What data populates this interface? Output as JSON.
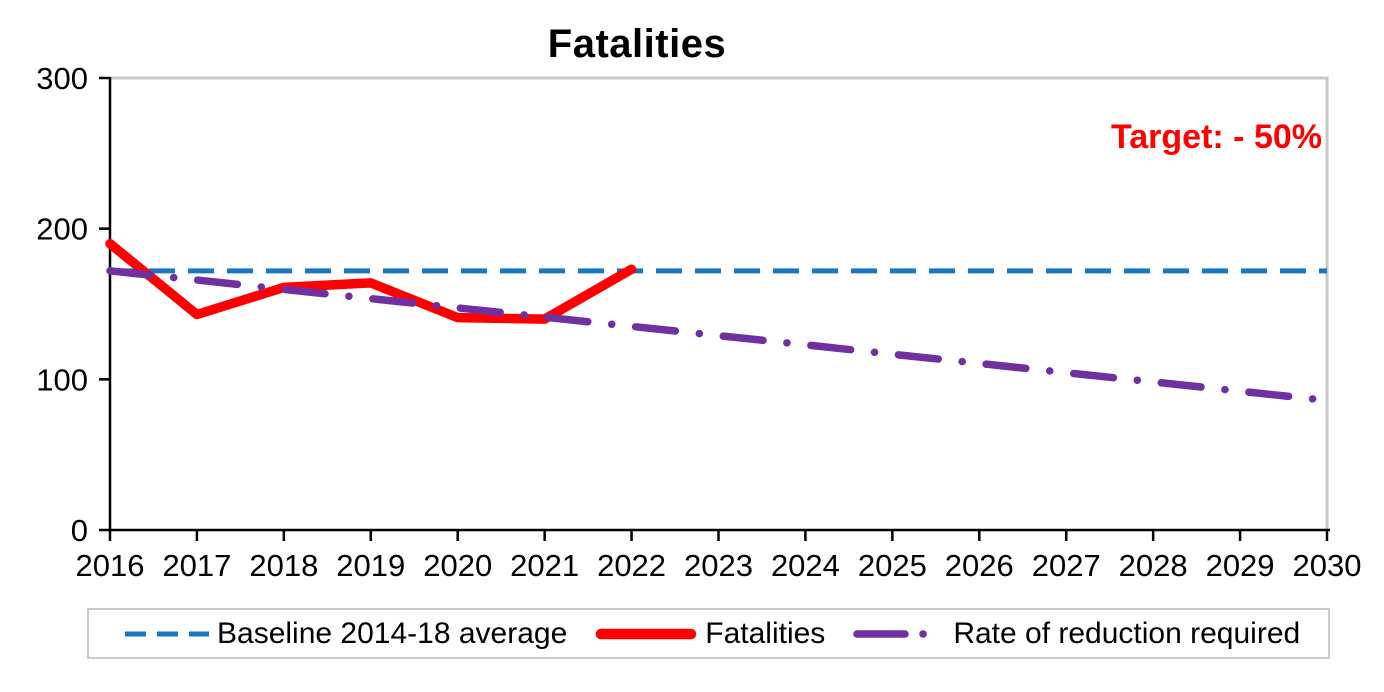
{
  "title": "Fatalities",
  "annotation": {
    "text": "Target: - 50%",
    "color": "#FF0000"
  },
  "colors": {
    "baseline": "#1878C4",
    "fatalities": "#FF0000",
    "rate": "#7030A0",
    "axis": "#000000",
    "plot_border": "#C9C9C9",
    "legend_border": "#C9C9C9"
  },
  "chart_data": {
    "type": "line",
    "title": "Fatalities",
    "annotation": "Target: - 50%",
    "x": [
      2016,
      2017,
      2018,
      2019,
      2020,
      2021,
      2022,
      2023,
      2024,
      2025,
      2026,
      2027,
      2028,
      2029,
      2030
    ],
    "ylim": [
      0,
      300
    ],
    "yticks": [
      0,
      100,
      200,
      300
    ],
    "grid": false,
    "legend_position": "bottom",
    "series": [
      {
        "name": "Baseline 2014-18 average",
        "color": "#1878C4",
        "line_style": "dashed",
        "values": [
          172,
          172,
          172,
          172,
          172,
          172,
          172,
          172,
          172,
          172,
          172,
          172,
          172,
          172,
          172
        ]
      },
      {
        "name": "Fatalities",
        "color": "#FF0000",
        "line_style": "solid",
        "values": [
          190,
          143,
          161,
          164,
          141,
          140,
          173,
          null,
          null,
          null,
          null,
          null,
          null,
          null,
          null
        ]
      },
      {
        "name": "Rate of reduction required",
        "color": "#7030A0",
        "line_style": "dash-dot",
        "values": [
          172,
          165.9,
          159.7,
          153.6,
          147.4,
          141.3,
          135.1,
          129,
          122.9,
          116.7,
          110.6,
          104.4,
          98.3,
          92.1,
          86
        ]
      }
    ]
  }
}
